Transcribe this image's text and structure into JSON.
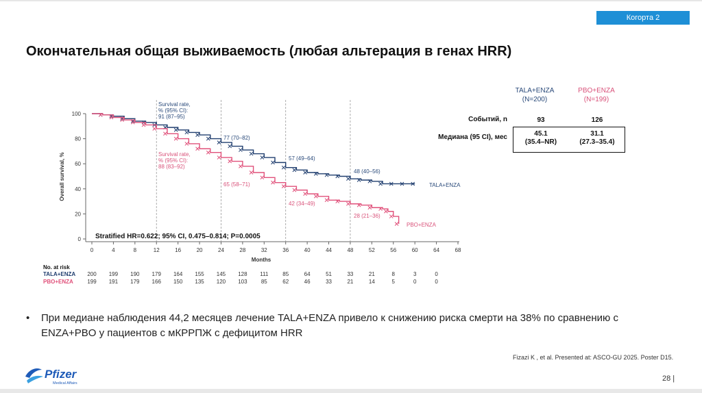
{
  "badge": "Когорта 2",
  "title": "Окончательная общая выживаемость (любая альтерация в генах HRR)",
  "summary_table": {
    "col_tala": "TALA+ENZA",
    "col_tala_n": "(N=200)",
    "col_pbo": "PBO+ENZA",
    "col_pbo_n": "(N=199)",
    "events_label": "Событий, n",
    "events_tala": "93",
    "events_pbo": "126",
    "median_label": "Медиана (95 CI), мес",
    "median_tala": "45.1",
    "median_tala_ci": "(35.4–NR)",
    "median_pbo": "31.1",
    "median_pbo_ci": "(27.3–35.4)"
  },
  "bullet": "При медиане наблюдения 44,2 месяцев лечение TALA+ENZA привело к снижению риска смерти на 38% по сравнению с ENZA+PBO у пациентов с мКРРПЖ с дефицитом HRR",
  "reference": "Fizazi K , et al. Presented at: ASCO-GU 2025. Poster D15.",
  "page_number": "28 |",
  "logo": {
    "brand": "Pfizer",
    "sub": "Medical Affairs"
  },
  "colors": {
    "tala": "#1f3d6e",
    "pbo": "#e0507a",
    "accent": "#1e8fd6"
  },
  "chart_data": {
    "type": "line",
    "title": "",
    "xlabel": "Months",
    "ylabel": "Overall survival, %",
    "xlim": [
      0,
      68
    ],
    "ylim": [
      0,
      100
    ],
    "xticks": [
      0,
      4,
      8,
      12,
      16,
      20,
      24,
      28,
      32,
      36,
      40,
      44,
      48,
      52,
      56,
      60,
      64,
      68
    ],
    "yticks": [
      0,
      20,
      40,
      60,
      80,
      100
    ],
    "series": [
      {
        "name": "TALA+ENZA",
        "x": [
          0,
          2,
          4,
          6,
          8,
          10,
          12,
          14,
          16,
          18,
          20,
          22,
          24,
          26,
          28,
          30,
          32,
          34,
          36,
          38,
          40,
          42,
          44,
          46,
          48,
          50,
          52,
          54,
          56,
          58,
          60
        ],
        "y": [
          100,
          99,
          98,
          96,
          94,
          93,
          91,
          89,
          87,
          85,
          83,
          80,
          77,
          74,
          71,
          68,
          65,
          61,
          57,
          55,
          53,
          52,
          51,
          50,
          48,
          47,
          46,
          44,
          44,
          44,
          44
        ]
      },
      {
        "name": "PBO+ENZA",
        "x": [
          0,
          2,
          4,
          6,
          8,
          10,
          12,
          14,
          16,
          18,
          20,
          22,
          24,
          26,
          28,
          30,
          32,
          34,
          36,
          38,
          40,
          42,
          44,
          46,
          48,
          50,
          52,
          54,
          55,
          56,
          57
        ],
        "y": [
          100,
          99,
          97,
          95,
          93,
          91,
          88,
          84,
          80,
          76,
          72,
          69,
          65,
          62,
          58,
          53,
          49,
          45,
          42,
          39,
          36,
          34,
          31,
          30,
          28,
          27,
          25,
          24,
          22,
          18,
          12
        ]
      }
    ],
    "annotations": {
      "tala_labels": [
        "Survival rate,",
        "% (95% CI):",
        "91 (87–95)"
      ],
      "pbo_labels": [
        "Survival rate,",
        "% (95% CI):",
        "88 (83–92)"
      ],
      "tala_24": "77 (70–82)",
      "tala_36": "57 (49–64)",
      "tala_48": "48 (40–56)",
      "pbo_24": "65 (58–71)",
      "pbo_36": "42 (34–49)",
      "pbo_48": "28 (21–36)",
      "tala_end": "TALA+ENZA",
      "pbo_end": "PBO+ENZA",
      "hr": "Stratified HR=0.622; 95% CI, 0.475–0.814; P=0.0005"
    },
    "risk_table": {
      "header": "No. at risk",
      "rows": [
        {
          "name": "TALA+ENZA",
          "values": [
            "200",
            "199",
            "190",
            "179",
            "164",
            "155",
            "145",
            "128",
            "111",
            "85",
            "64",
            "51",
            "33",
            "21",
            "8",
            "3",
            "0"
          ]
        },
        {
          "name": "PBO+ENZA",
          "values": [
            "199",
            "191",
            "179",
            "166",
            "150",
            "135",
            "120",
            "103",
            "85",
            "62",
            "46",
            "33",
            "21",
            "14",
            "5",
            "0",
            "0"
          ]
        }
      ]
    }
  }
}
